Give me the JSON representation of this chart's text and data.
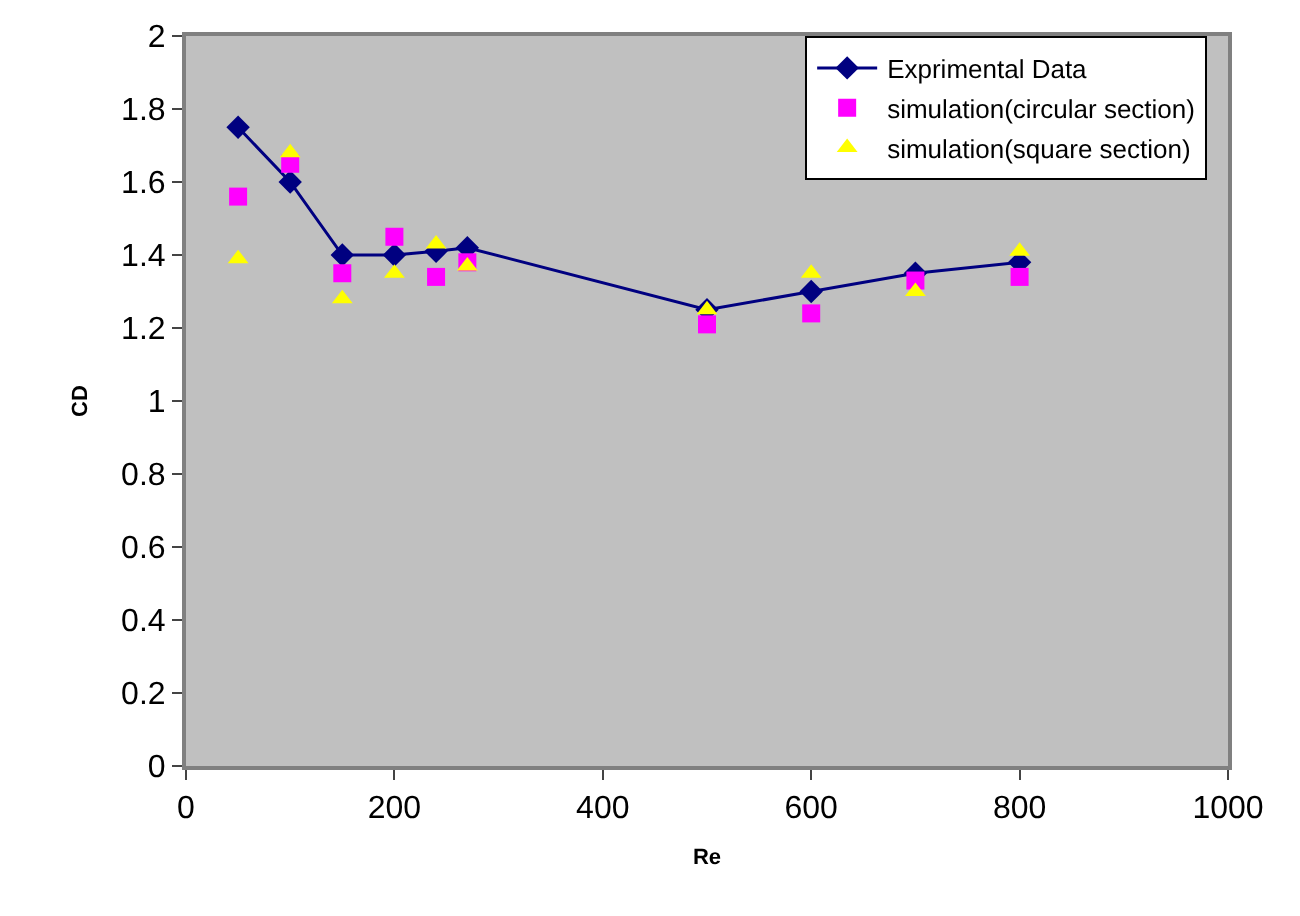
{
  "chart_data": {
    "type": "line",
    "xlabel": "Re",
    "ylabel": "CD",
    "x": [
      50,
      100,
      150,
      200,
      240,
      270,
      500,
      600,
      700,
      800
    ],
    "series": [
      {
        "name": "Exprimental Data",
        "color": "#000080",
        "marker": "diamond",
        "values": [
          1.75,
          1.6,
          1.4,
          1.4,
          1.41,
          1.42,
          1.25,
          1.3,
          1.35,
          1.38
        ]
      },
      {
        "name": "simulation(circular section)",
        "color": "#ff00ff",
        "type": "scatter",
        "marker": "square",
        "values": [
          1.56,
          1.65,
          1.35,
          1.45,
          1.34,
          1.38,
          1.21,
          1.24,
          1.33,
          1.34
        ]
      },
      {
        "name": "simulation(square section)",
        "color": "#ffff00",
        "type": "scatter",
        "marker": "triangle",
        "values": [
          1.39,
          1.68,
          1.28,
          1.35,
          1.43,
          1.37,
          1.25,
          1.35,
          1.3,
          1.41
        ]
      }
    ],
    "xlim": [
      0,
      1000
    ],
    "xticks": [
      0,
      200,
      400,
      600,
      800,
      1000
    ],
    "ylim": [
      0,
      2
    ],
    "yticks": [
      0,
      0.2,
      0.4,
      0.6,
      0.8,
      1,
      1.2,
      1.4,
      1.6,
      1.8,
      2
    ],
    "grid": false,
    "legend": "top right",
    "line_style": "solid"
  }
}
